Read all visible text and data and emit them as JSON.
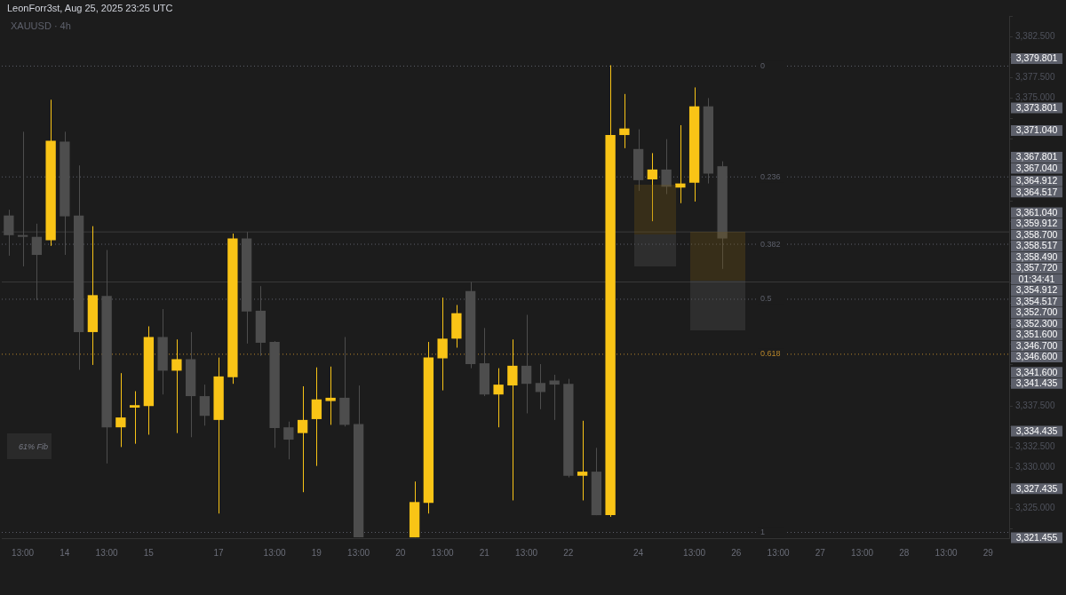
{
  "chart_data": {
    "type": "candlestick",
    "title": "XAUUSD · 4h",
    "categories": [
      null,
      "13:00",
      null,
      null,
      "14",
      null,
      null,
      "13:00",
      null,
      null,
      "15",
      null,
      null,
      null,
      null,
      "17",
      null,
      null,
      null,
      "13:00",
      null,
      null,
      "19",
      null,
      null,
      "13:00",
      null,
      null,
      "20",
      null,
      null,
      "13:00",
      null,
      null,
      "21",
      null,
      null,
      "13:00",
      null,
      null,
      "22",
      null,
      null,
      null,
      null,
      "24",
      null,
      null,
      null,
      "13:00",
      null,
      null,
      "26",
      null,
      null,
      "13:00",
      null,
      null,
      "27",
      null,
      null,
      "13:00",
      null,
      null,
      "28",
      null,
      null,
      "13:00",
      null,
      null,
      "29",
      null
    ],
    "ohlc": [
      [
        3360.7,
        3361.4,
        3355.8,
        3358.3
      ],
      [
        3358.3,
        3370.9,
        3354.5,
        3358.1
      ],
      [
        3358.1,
        3359.7,
        3350.4,
        3355.9
      ],
      [
        3357.7,
        3374.8,
        3357.0,
        3369.8
      ],
      [
        3369.7,
        3370.9,
        3355.9,
        3360.6
      ],
      [
        3360.7,
        3366.8,
        3341.9,
        3346.5
      ],
      [
        3346.5,
        3359.4,
        3342.5,
        3351.0
      ],
      [
        3350.9,
        3356.5,
        3330.5,
        3334.9
      ],
      [
        3334.9,
        3341.5,
        3332.5,
        3336.1
      ],
      [
        3337.3,
        3339.3,
        3332.9,
        3337.6
      ],
      [
        3337.5,
        3347.2,
        3334.0,
        3345.9
      ],
      [
        3345.9,
        3349.3,
        3338.9,
        3341.8
      ],
      [
        3341.8,
        3345.6,
        3334.2,
        3343.2
      ],
      [
        3343.2,
        3346.5,
        3333.7,
        3338.7
      ],
      [
        3338.7,
        3340.1,
        3335.1,
        3336.3
      ],
      [
        3335.8,
        3343.4,
        3324.4,
        3341.1
      ],
      [
        3341.0,
        3358.5,
        3340.2,
        3357.9
      ],
      [
        3357.9,
        3358.7,
        3345.1,
        3349.0
      ],
      [
        3349.1,
        3352.1,
        3343.6,
        3345.2
      ],
      [
        3345.3,
        3345.4,
        3332.4,
        3334.8
      ],
      [
        3334.9,
        3335.6,
        3331.0,
        3333.4
      ],
      [
        3334.2,
        3339.9,
        3327.0,
        3335.8
      ],
      [
        3335.9,
        3342.2,
        3330.2,
        3338.3
      ],
      [
        3338.1,
        3342.3,
        3335.2,
        3338.5
      ],
      [
        3338.5,
        3345.9,
        3335.0,
        3335.2
      ],
      [
        3335.3,
        3340.0,
        3321.5,
        3321.5
      ],
      null,
      null,
      null,
      [
        3321.5,
        3328.3,
        3321.5,
        3325.8
      ],
      [
        3325.7,
        3345.3,
        3324.4,
        3343.4
      ],
      [
        3343.3,
        3350.7,
        3339.4,
        3345.7
      ],
      [
        3345.7,
        3349.8,
        3344.6,
        3348.8
      ],
      [
        3351.5,
        3352.6,
        3342.1,
        3342.6
      ],
      [
        3342.7,
        3347.0,
        3338.7,
        3338.9
      ],
      [
        3338.9,
        3342.1,
        3334.9,
        3340.1
      ],
      [
        3340.0,
        3345.6,
        3326.0,
        3342.4
      ],
      [
        3342.4,
        3348.6,
        3336.6,
        3340.2
      ],
      [
        3340.3,
        3342.6,
        3337.1,
        3339.2
      ],
      [
        3340.6,
        3341.3,
        3335.8,
        3340.1
      ],
      [
        3340.2,
        3340.8,
        3328.8,
        3329.0
      ],
      [
        3329.0,
        3335.7,
        3326.0,
        3329.5
      ],
      [
        3329.5,
        3332.4,
        3324.2,
        3324.2
      ],
      [
        3324.2,
        3379.0,
        3324.0,
        3370.5
      ],
      [
        3370.5,
        3375.5,
        3368.9,
        3371.3
      ],
      [
        3368.8,
        3371.2,
        3363.7,
        3365.0
      ],
      [
        3365.1,
        3368.3,
        3360.0,
        3366.3
      ],
      [
        3366.3,
        3370.0,
        3363.3,
        3364.2
      ],
      [
        3364.1,
        3371.7,
        3362.2,
        3364.6
      ],
      [
        3364.7,
        3376.3,
        3362.4,
        3374.0
      ],
      [
        3374.0,
        3375.0,
        3364.6,
        3365.8
      ],
      [
        3366.7,
        3367.3,
        3354.2,
        3357.9
      ],
      null,
      null,
      null,
      null,
      null,
      null,
      null,
      null,
      null,
      null,
      null,
      null,
      null,
      null,
      null,
      null,
      null,
      null,
      null,
      null
    ],
    "colors": [
      "#4d4d4d",
      "#4d4d4d",
      "#4d4d4d",
      "#f9c416",
      "#4d4d4d",
      "#4d4d4d",
      "#f9c416",
      "#4d4d4d",
      "#f9c416",
      "#f9c416",
      "#f9c416",
      "#4d4d4d",
      "#f9c416",
      "#4d4d4d",
      "#4d4d4d",
      "#f9c416",
      "#f9c416",
      "#4d4d4d",
      "#4d4d4d",
      "#4d4d4d",
      "#4d4d4d",
      "#f9c416",
      "#f9c416",
      "#f9c416",
      "#4d4d4d",
      "#4d4d4d",
      null,
      null,
      null,
      "#f9c416",
      "#f9c416",
      "#f9c416",
      "#f9c416",
      "#4d4d4d",
      "#4d4d4d",
      "#f9c416",
      "#f9c416",
      "#4d4d4d",
      "#4d4d4d",
      "#4d4d4d",
      "#4d4d4d",
      "#f9c416",
      "#4d4d4d",
      "#f9c416",
      "#f9c416",
      "#4d4d4d",
      "#f9c416",
      "#4d4d4d",
      "#f9c416",
      "#f9c416",
      "#4d4d4d",
      "#4d4d4d",
      null,
      null,
      null,
      null,
      null,
      null,
      null,
      null,
      null,
      null,
      null,
      null,
      null,
      null,
      null,
      null,
      null,
      null,
      null,
      null
    ],
    "ylim": [
      3321.4,
      3385
    ],
    "yticks": [
      {
        "value": 3322.5,
        "label": null
      },
      {
        "value": 3325,
        "label": "3,325.000"
      },
      {
        "value": 3327.5,
        "label": null
      },
      {
        "value": 3330,
        "label": "3,330.000"
      },
      {
        "value": 3332.5,
        "label": "3,332.500"
      },
      {
        "value": 3335,
        "label": null
      },
      {
        "value": 3337.5,
        "label": "3,337.500"
      },
      {
        "value": 3340,
        "label": null
      },
      {
        "value": 3342.5,
        "label": null
      },
      {
        "value": 3345,
        "label": null
      },
      {
        "value": 3347.5,
        "label": null
      },
      {
        "value": 3350,
        "label": null
      },
      {
        "value": 3352.5,
        "label": null
      },
      {
        "value": 3355,
        "label": null
      },
      {
        "value": 3357.5,
        "label": null
      },
      {
        "value": 3360,
        "label": null
      },
      {
        "value": 3362.5,
        "label": null
      },
      {
        "value": 3365,
        "label": null
      },
      {
        "value": 3367.5,
        "label": null
      },
      {
        "value": 3370,
        "label": null
      },
      {
        "value": 3372.5,
        "label": null
      },
      {
        "value": 3375,
        "label": "3,375.000"
      },
      {
        "value": 3377.5,
        "label": "3,377.500"
      },
      {
        "value": 3380,
        "label": null
      },
      {
        "value": 3382.5,
        "label": "3,382.500"
      },
      {
        "value": 3385,
        "label": null
      }
    ],
    "ref_lines": [
      {
        "axis": "y",
        "value": 3378.9,
        "color": "#5d606b",
        "line_style": "dotted"
      },
      {
        "axis": "y",
        "value": 3365.4,
        "color": "#5d606b",
        "line_style": "dotted"
      },
      {
        "axis": "y",
        "value": 3357.2,
        "color": "#5d606b",
        "line_style": "dotted"
      },
      {
        "axis": "y",
        "value": 3350.5,
        "color": "#5d606b",
        "line_style": "dotted"
      },
      {
        "axis": "y",
        "value": 3343.8,
        "color": "#b8862a",
        "line_style": "dotted"
      },
      {
        "axis": "y",
        "value": 3322.1,
        "color": "#5d606b",
        "line_style": "dotted"
      },
      {
        "axis": "y",
        "value": 3358.7,
        "color": "#3a3a3a",
        "line_style": "solid"
      },
      {
        "axis": "y",
        "value": 3352.6,
        "color": "#3a3a3a",
        "line_style": "solid"
      }
    ],
    "annotations": [
      "LeonForr3st, Aug 25, 2025 23:25 UTC",
      "61% Fib",
      "3,379.801",
      "3,373.801",
      "3,371.040",
      "3,367.801",
      "3,367.040",
      "3,364.912",
      "3,364.517",
      "3,361.040",
      "3,359.912",
      "3,358.700",
      "3,358.517",
      "3,358.490",
      "3,357.720",
      "01:34:41",
      "3,354.912",
      "3,354.517",
      "3,352.700",
      "3,352.300",
      "3,351.600",
      "3,346.700",
      "3,346.600",
      "3,341.600",
      "3,341.435",
      "3,334.435",
      "3,327.435",
      "3,321.455",
      {
        "text": "0",
        "y": 3378.9
      },
      {
        "text": "0.236",
        "y": 3365.4
      },
      {
        "text": "0.382",
        "y": 3357.2
      },
      {
        "text": "0.5",
        "y": 3350.5
      },
      {
        "text": "0.618",
        "y": 3343.8
      },
      {
        "text": "1",
        "y": 3322.1
      }
    ]
  }
}
